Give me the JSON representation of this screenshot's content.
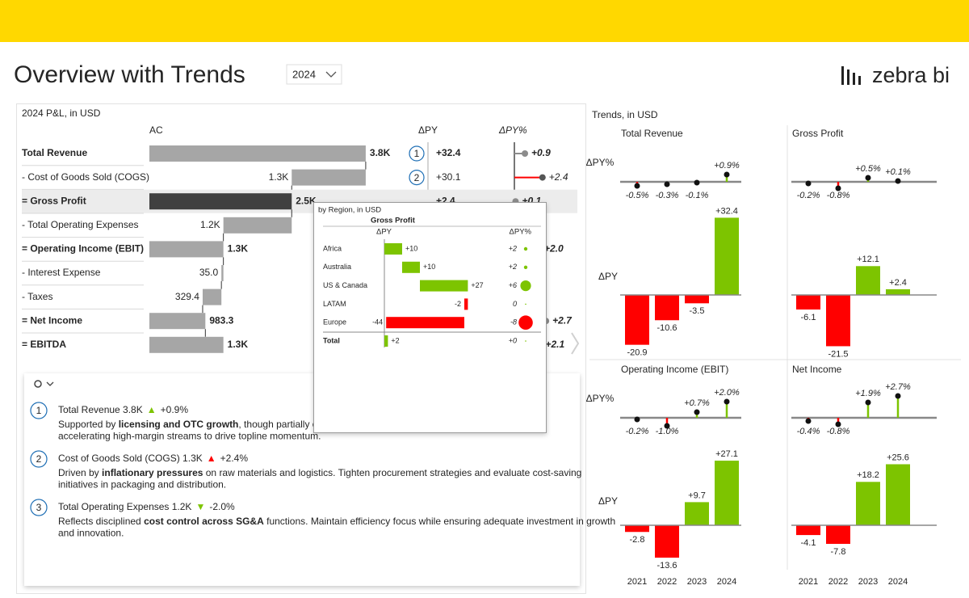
{
  "header": {
    "title": "Overview with Trends",
    "year": "2024",
    "logo": "zebra bi"
  },
  "colors": {
    "positive": "#7dc400",
    "negative": "#ff0000",
    "bar": "#a6a6a6",
    "selected_bar": "#404040",
    "total_pin": "#8c8c8c"
  },
  "pl": {
    "title": "2024 P&L, in USD",
    "columns": [
      "AC",
      "ΔPY",
      "ΔPY%"
    ],
    "selected_row": 2,
    "rows": [
      {
        "label": "Total Revenue",
        "ac": 3800,
        "ac_label": "3.8K",
        "dpy": 32.4,
        "dpy_label": "+32.4",
        "dpy_pct": 0.9,
        "dpy_pct_label": "+0.9",
        "marker": "1"
      },
      {
        "label": "- Cost of Goods Sold (COGS)",
        "ac": 1300,
        "ac_label": "1.3K",
        "dpy": 30.1,
        "dpy_label": "+30.1",
        "dpy_pct": 2.4,
        "dpy_pct_label": "+2.4",
        "marker": "2"
      },
      {
        "label": "= Gross Profit",
        "ac": 2500,
        "ac_label": "2.5K",
        "dpy": 2.4,
        "dpy_label": "+2.4",
        "dpy_pct": 0.1,
        "dpy_pct_label": "+0.1"
      },
      {
        "label": "- Total Operating Expenses",
        "ac": 1200,
        "ac_label": "1.2K"
      },
      {
        "label": "= Operating Income (EBIT)",
        "ac": 1300,
        "ac_label": "1.3K",
        "dpy_pct": 2.0,
        "dpy_pct_label": "+2.0"
      },
      {
        "label": "- Interest Expense",
        "ac": 35,
        "ac_label": "35.0"
      },
      {
        "label": "- Taxes",
        "ac": 329.4
      },
      {
        "label": "= Net Income",
        "ac": 983.3,
        "dpy_pct": 2.7,
        "dpy_pct_label": "+2.7"
      },
      {
        "label": "= EBITDA",
        "ac": 1300,
        "ac_label": "1.3K",
        "dpy_pct": 2.1,
        "dpy_pct_label": "+2.1"
      }
    ]
  },
  "region_popup": {
    "title": "by Region, in USD",
    "measure": "Gross Profit",
    "columns": [
      "ΔPY",
      "ΔPY%"
    ],
    "rows": [
      {
        "label": "Africa",
        "dpy": 10,
        "dpy_label": "+10",
        "dpy_pct": 2,
        "dpy_pct_label": "+2"
      },
      {
        "label": "Australia",
        "dpy": 10,
        "dpy_label": "+10",
        "dpy_pct": 2,
        "dpy_pct_label": "+2"
      },
      {
        "label": "US & Canada",
        "dpy": 27,
        "dpy_label": "+27",
        "dpy_pct": 6,
        "dpy_pct_label": "+6"
      },
      {
        "label": "LATAM",
        "dpy": -2,
        "dpy_pct": 0
      },
      {
        "label": "Europe",
        "dpy": -44,
        "dpy_pct": -8
      },
      {
        "label": "Total",
        "dpy": 2,
        "dpy_label": "+2",
        "dpy_pct": 0,
        "dpy_pct_label": "+0"
      }
    ]
  },
  "notes": [
    {
      "number": "1",
      "title": "Total Revenue 3.8K",
      "arrow": "▲",
      "arrow_color": "#7dc400",
      "delta": "+0.9%",
      "lines": [
        [
          {
            "text": "Supported by "
          },
          {
            "text": "licensing and OTC growth",
            "bold": true
          },
          {
            "text": ", though partially offset"
          }
        ],
        [
          {
            "text": "accelerating high-margin streams to drive topline momentum."
          }
        ]
      ]
    },
    {
      "number": "2",
      "title": "Cost of Goods Sold (COGS) 1.3K",
      "arrow": "▲",
      "arrow_color": "#ff0000",
      "delta": "+2.4%",
      "lines": [
        [
          {
            "text": "Driven by "
          },
          {
            "text": "inflationary pressures",
            "bold": true
          },
          {
            "text": " on raw materials and logistics. Tighten procurement strategies and evaluate cost-saving"
          }
        ],
        [
          {
            "text": "initiatives in packaging and distribution."
          }
        ]
      ]
    },
    {
      "number": "3",
      "title": "Total Operating Expenses 1.2K",
      "arrow": "▼",
      "arrow_color": "#7dc400",
      "delta": "-2.0%",
      "lines": [
        [
          {
            "text": "Reflects disciplined "
          },
          {
            "text": "cost control across SG&A",
            "bold": true
          },
          {
            "text": " functions. Maintain efficiency focus while ensuring adequate investment in growth"
          }
        ],
        [
          {
            "text": "and innovation."
          }
        ]
      ]
    }
  ],
  "trends": {
    "title": "Trends, in USD",
    "pct_label": "ΔPY%",
    "abs_label": "ΔPY",
    "years": [
      "2021",
      "2022",
      "2023",
      "2024"
    ],
    "charts": [
      {
        "title": "Total Revenue",
        "dpy_pct": [
          -0.5,
          -0.3,
          -0.1,
          0.9
        ],
        "dpy_pct_labels": [
          "-0.5%",
          "-0.3%",
          "-0.1%",
          "+0.9%"
        ],
        "dpy": [
          -20.9,
          -10.6,
          -3.5,
          32.4
        ],
        "dpy_labels": [
          "-20.9",
          "-10.6",
          "-3.5",
          "+32.4"
        ]
      },
      {
        "title": "Gross Profit",
        "dpy_pct": [
          -0.2,
          -0.8,
          0.5,
          0.1
        ],
        "dpy_pct_labels": [
          "-0.2%",
          "-0.8%",
          "+0.5%",
          "+0.1%"
        ],
        "dpy": [
          -6.1,
          -21.5,
          12.1,
          2.4
        ],
        "dpy_labels": [
          "-6.1",
          "-21.5",
          "+12.1",
          "+2.4"
        ]
      },
      {
        "title": "Operating Income (EBIT)",
        "dpy_pct": [
          -0.2,
          -1.0,
          0.7,
          2.0
        ],
        "dpy_pct_labels": [
          "-0.2%",
          "-1.0%",
          "+0.7%",
          "+2.0%"
        ],
        "dpy": [
          -2.8,
          -13.6,
          9.7,
          27.1
        ],
        "dpy_labels": [
          "-2.8",
          "-13.6",
          "+9.7",
          "+27.1"
        ]
      },
      {
        "title": "Net Income",
        "dpy_pct": [
          -0.4,
          -0.8,
          1.9,
          2.7
        ],
        "dpy_pct_labels": [
          "-0.4%",
          "-0.8%",
          "+1.9%",
          "+2.7%"
        ],
        "dpy": [
          -4.1,
          -7.8,
          18.2,
          25.6
        ],
        "dpy_labels": [
          "-4.1",
          "-7.8",
          "+18.2",
          "+25.6"
        ]
      }
    ]
  }
}
